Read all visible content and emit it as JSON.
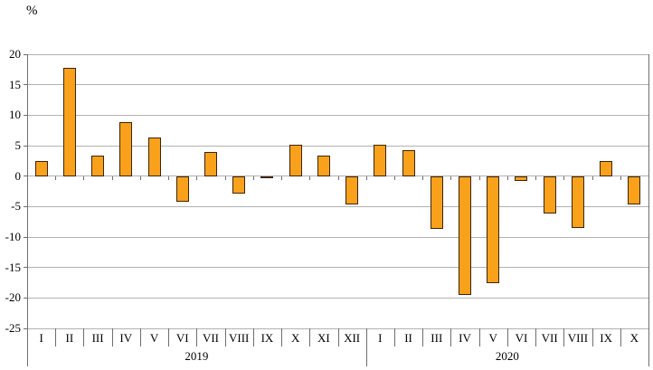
{
  "chart_data": {
    "type": "bar",
    "title": "",
    "xlabel": "",
    "ylabel": "%",
    "ylim": [
      -25,
      20
    ],
    "ytick_step": 5,
    "yticks": [
      20,
      15,
      10,
      5,
      0,
      -5,
      -10,
      -15,
      -20,
      -25
    ],
    "grid": true,
    "legend": "none",
    "bar_color": "#F9A11B",
    "bar_border_color": "#3a2410",
    "gridline_color": "#b2b2b2",
    "axis_color": "#6e6e6e",
    "groups": [
      {
        "year": "2019",
        "categories": [
          "I",
          "II",
          "III",
          "IV",
          "V",
          "VI",
          "VII",
          "VIII",
          "IX",
          "X",
          "XI",
          "XII"
        ],
        "values": [
          2.5,
          17.8,
          3.3,
          8.9,
          6.3,
          -4.2,
          3.9,
          -2.9,
          -0.1,
          5.2,
          3.4,
          -4.7
        ]
      },
      {
        "year": "2020",
        "categories": [
          "I",
          "II",
          "III",
          "IV",
          "V",
          "VI",
          "VII",
          "VIII",
          "IX",
          "X"
        ],
        "values": [
          5.2,
          4.3,
          -8.7,
          -19.5,
          -17.6,
          -0.8,
          -6.2,
          -8.5,
          2.5,
          -4.7
        ]
      }
    ]
  }
}
